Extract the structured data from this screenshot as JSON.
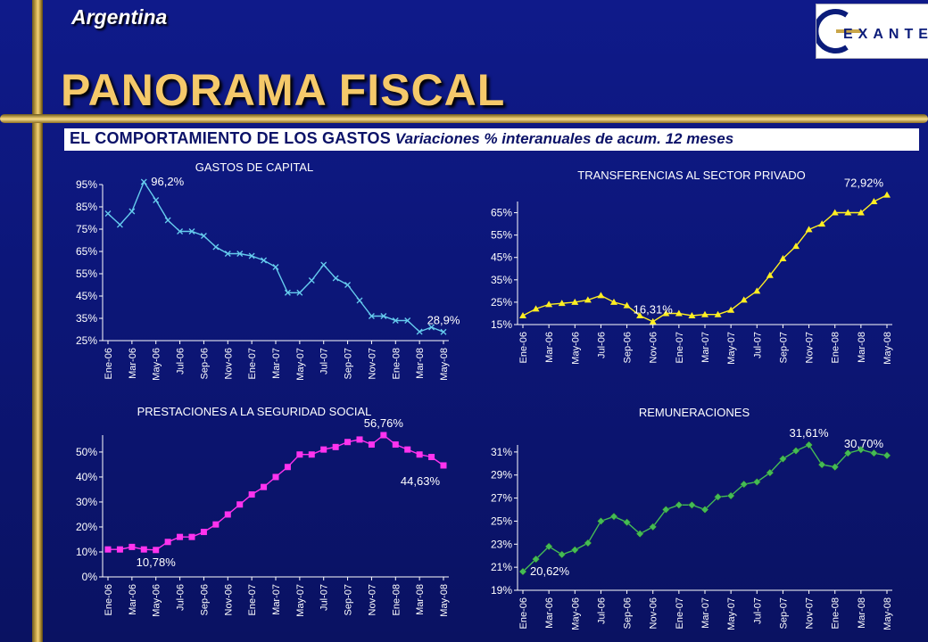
{
  "header": {
    "country": "Argentina",
    "title": "PANORAMA FISCAL",
    "subtitle_bold": "EL COMPORTAMIENTO DE LOS GASTOS",
    "subtitle_italic": "Variaciones % interanuales de acum. 12 meses",
    "logo_text": "EXANTE",
    "logo_icon": "exante-logo"
  },
  "chart_data": [
    {
      "type": "line",
      "title": "GASTOS DE CAPITAL",
      "xlabel": "",
      "ylabel": "",
      "ylim": [
        25,
        95
      ],
      "yticks": [
        25,
        35,
        45,
        55,
        65,
        75,
        85,
        95
      ],
      "tick_format": "{}%",
      "color": "#66ccee",
      "marker": "x",
      "x_tick_labels": [
        "Ene-06",
        "Mar-06",
        "May-06",
        "Jul-06",
        "Sep-06",
        "Nov-06",
        "Ene-07",
        "Mar-07",
        "May-07",
        "Jul-07",
        "Sep-07",
        "Nov-07",
        "Ene-08",
        "Mar-08",
        "May-08"
      ],
      "values": [
        82,
        77,
        83,
        96.2,
        88,
        79,
        74,
        74,
        72,
        67,
        64,
        64,
        63,
        61,
        58,
        46.5,
        46.5,
        52,
        59,
        53,
        50,
        43,
        36,
        36,
        34,
        34,
        29,
        31,
        28.9
      ],
      "annotations": [
        {
          "index": 3,
          "text": "96,2%",
          "position": "right"
        },
        {
          "index": 28,
          "text": "28,9%",
          "position": "above"
        }
      ]
    },
    {
      "type": "line",
      "title": "TRANSFERENCIAS AL SECTOR PRIVADO",
      "xlabel": "",
      "ylabel": "",
      "ylim": [
        15,
        70
      ],
      "yticks": [
        15,
        25,
        35,
        45,
        55,
        65
      ],
      "tick_format": "{}%",
      "color": "#ffee22",
      "marker": "triangle",
      "x_tick_labels": [
        "Ene-06",
        "Mar-06",
        "May-06",
        "Jul-06",
        "Sep-06",
        "Nov-06",
        "Ene-07",
        "Mar-07",
        "May-07",
        "Jul-07",
        "Sep-07",
        "Nov-07",
        "Ene-08",
        "Mar-08",
        "May-08"
      ],
      "values": [
        19,
        22,
        24,
        24.5,
        25,
        26,
        28,
        25,
        23.5,
        19,
        16.31,
        20,
        20,
        19,
        19.5,
        19.5,
        21.5,
        26,
        30,
        37,
        44.5,
        50,
        57.5,
        60,
        65,
        65,
        65,
        70,
        72.92
      ],
      "annotations": [
        {
          "index": 10,
          "text": "16,31%",
          "position": "above"
        },
        {
          "index": 28,
          "text": "72,92%",
          "position": "above-left"
        }
      ]
    },
    {
      "type": "line",
      "title": "PRESTACIONES A LA SEGURIDAD SOCIAL",
      "xlabel": "",
      "ylabel": "",
      "ylim": [
        0,
        56.76
      ],
      "yticks": [
        0,
        10,
        20,
        30,
        40,
        50
      ],
      "tick_format": "{}%",
      "color": "#ff33ee",
      "marker": "square",
      "x_tick_labels": [
        "Ene-06",
        "Mar-06",
        "May-06",
        "Jul-06",
        "Sep-06",
        "Nov-06",
        "Ene-07",
        "Mar-07",
        "May-07",
        "Jul-07",
        "Sep-07",
        "Nov-07",
        "Ene-08",
        "Mar-08",
        "May-08"
      ],
      "values": [
        11,
        11,
        12,
        11,
        10.78,
        14,
        16,
        16,
        18,
        21,
        25,
        29,
        33,
        36,
        40,
        44,
        49,
        49,
        51,
        52,
        54,
        55,
        53,
        56.76,
        53,
        51,
        49,
        48,
        44.63
      ],
      "annotations": [
        {
          "index": 4,
          "text": "10,78%",
          "position": "below"
        },
        {
          "index": 23,
          "text": "56,76%",
          "position": "above"
        },
        {
          "index": 28,
          "text": "44,63%",
          "position": "below-left"
        }
      ]
    },
    {
      "type": "line",
      "title": "REMUNERACIONES",
      "xlabel": "",
      "ylabel": "",
      "ylim": [
        19,
        31.61
      ],
      "yticks": [
        19,
        21,
        23,
        25,
        27,
        29,
        31
      ],
      "tick_format": "{}%",
      "color": "#44bb55",
      "marker": "diamond",
      "x_tick_labels": [
        "Ene-06",
        "Mar-06",
        "May-06",
        "Jul-06",
        "Sep-06",
        "Nov-06",
        "Ene-07",
        "Mar-07",
        "May-07",
        "Jul-07",
        "Sep-07",
        "Nov-07",
        "Ene-08",
        "Mar-08",
        "May-08"
      ],
      "values": [
        20.62,
        21.7,
        22.8,
        22.1,
        22.5,
        23.1,
        25,
        25.4,
        24.9,
        23.9,
        24.5,
        26,
        26.4,
        26.4,
        26,
        27.1,
        27.2,
        28.2,
        28.4,
        29.2,
        30.4,
        31.1,
        31.61,
        29.9,
        29.7,
        30.9,
        31.2,
        30.9,
        30.7
      ],
      "annotations": [
        {
          "index": 0,
          "text": "20,62%",
          "position": "right"
        },
        {
          "index": 22,
          "text": "31,61%",
          "position": "above"
        },
        {
          "index": 28,
          "text": "30,70%",
          "position": "above-left"
        }
      ]
    }
  ]
}
